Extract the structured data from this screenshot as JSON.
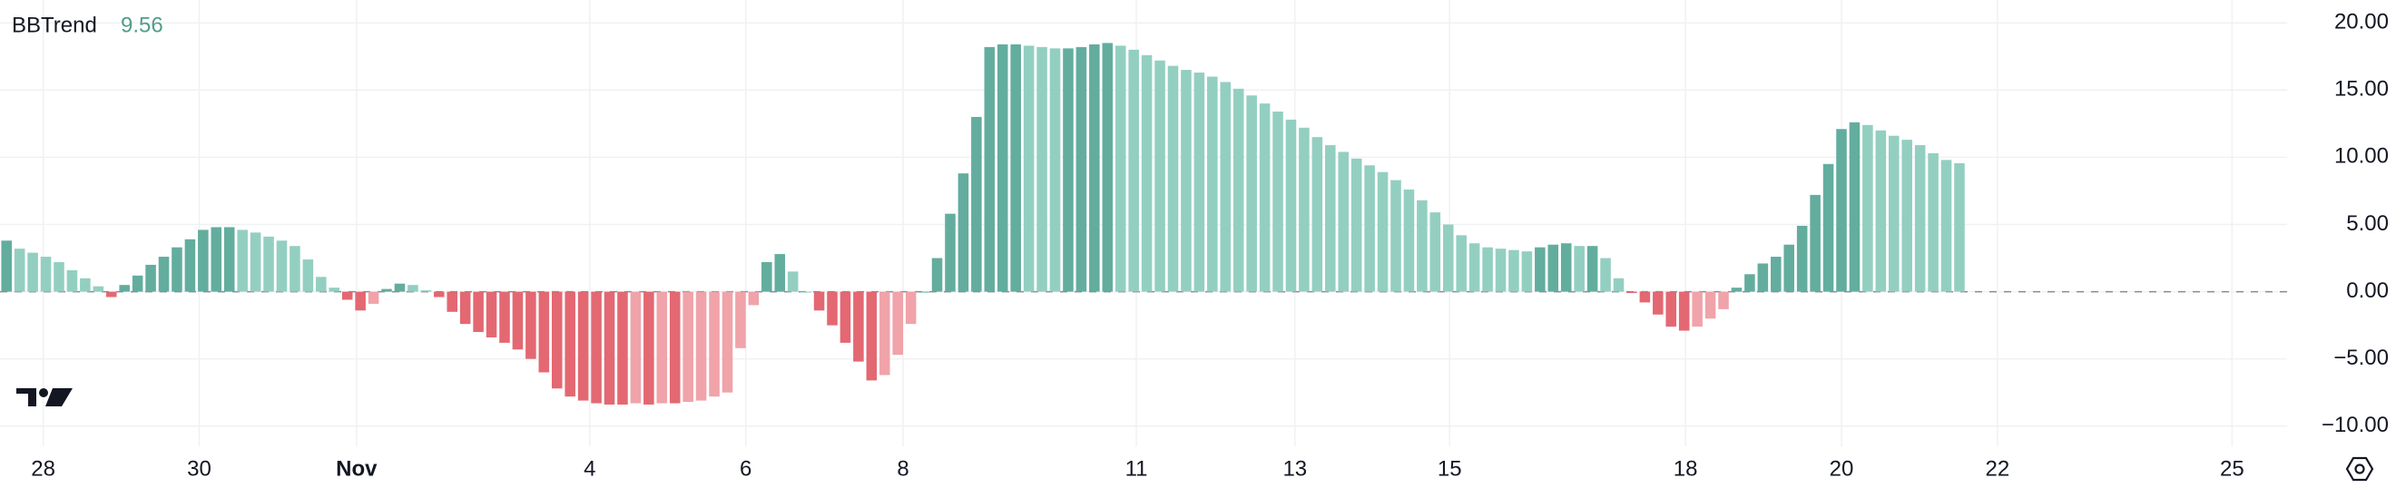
{
  "chart_data": {
    "type": "bar",
    "title": "BBTrend",
    "values": [
      3.8,
      3.2,
      2.9,
      2.6,
      2.2,
      1.6,
      1.0,
      0.4,
      -0.4,
      0.5,
      1.2,
      2.0,
      2.6,
      3.3,
      3.9,
      4.6,
      4.8,
      4.8,
      4.6,
      4.4,
      4.1,
      3.8,
      3.4,
      2.4,
      1.1,
      0.3,
      -0.6,
      -1.4,
      -0.9,
      0.2,
      0.6,
      0.5,
      0.1,
      -0.4,
      -1.5,
      -2.4,
      -3.0,
      -3.4,
      -3.8,
      -4.3,
      -5.0,
      -6.0,
      -7.2,
      -7.8,
      -8.1,
      -8.3,
      -8.4,
      -8.4,
      -8.3,
      -8.4,
      -8.3,
      -8.3,
      -8.2,
      -8.1,
      -7.8,
      -7.5,
      -4.2,
      -1.0,
      2.2,
      2.8,
      1.5,
      0.0,
      -1.4,
      -2.5,
      -3.8,
      -5.2,
      -6.6,
      -6.2,
      -4.7,
      -2.4,
      0.0,
      2.5,
      5.8,
      8.8,
      13.0,
      18.2,
      18.4,
      18.4,
      18.3,
      18.2,
      18.1,
      18.1,
      18.2,
      18.4,
      18.5,
      18.3,
      18.0,
      17.6,
      17.2,
      16.8,
      16.5,
      16.3,
      16.0,
      15.6,
      15.1,
      14.6,
      14.0,
      13.4,
      12.8,
      12.2,
      11.5,
      10.9,
      10.4,
      9.9,
      9.4,
      8.9,
      8.3,
      7.6,
      6.8,
      5.9,
      5.0,
      4.2,
      3.6,
      3.3,
      3.2,
      3.1,
      3.0,
      3.3,
      3.5,
      3.6,
      3.4,
      3.4,
      2.5,
      1.0,
      -0.1,
      -0.8,
      -1.7,
      -2.6,
      -2.9,
      -2.6,
      -2.0,
      -1.3,
      0.3,
      1.3,
      2.1,
      2.6,
      3.5,
      4.9,
      7.2,
      9.5,
      12.1,
      12.6,
      12.4,
      12.0,
      11.6,
      11.3,
      10.9,
      10.3,
      9.8,
      9.56
    ],
    "palette": {
      "positive_rising": "#63ad9e",
      "positive_falling": "#93cfc1",
      "negative_falling": "#e36872",
      "negative_rising": "#f0a3a9"
    },
    "xlim": [
      -0.5,
      174
    ],
    "xticks": [
      {
        "value": 2.8,
        "label": "28"
      },
      {
        "value": 14.7,
        "label": "30"
      },
      {
        "value": 26.7,
        "label": "Nov"
      },
      {
        "value": 44.5,
        "label": "4"
      },
      {
        "value": 56.4,
        "label": "6"
      },
      {
        "value": 68.4,
        "label": "8"
      },
      {
        "value": 86.2,
        "label": "11"
      },
      {
        "value": 98.3,
        "label": "13"
      },
      {
        "value": 110.1,
        "label": "15"
      },
      {
        "value": 128.1,
        "label": "18"
      },
      {
        "value": 140.0,
        "label": "20"
      },
      {
        "value": 151.9,
        "label": "22"
      },
      {
        "value": 169.8,
        "label": "25"
      }
    ],
    "ylim": [
      -11.5,
      21.7
    ],
    "yticks": [
      {
        "value": 20,
        "label": "20.00"
      },
      {
        "value": 15,
        "label": "15.00"
      },
      {
        "value": 10,
        "label": "10.00"
      },
      {
        "value": 5,
        "label": "5.00"
      },
      {
        "value": 0,
        "label": "0.00"
      },
      {
        "value": -5,
        "label": "−5.00"
      },
      {
        "value": -10,
        "label": "−10.00"
      }
    ],
    "grid": true
  }
}
